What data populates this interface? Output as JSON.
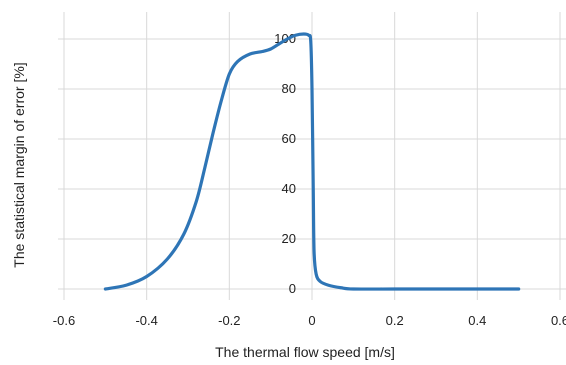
{
  "chart_data": {
    "type": "line",
    "title": "",
    "xlabel": "The thermal flow speed [m/s]",
    "ylabel": "The statistical margin of error [%]",
    "xlim": [
      -0.6,
      0.6
    ],
    "ylim": [
      0,
      100
    ],
    "x_ticks": [
      -0.6,
      -0.4,
      -0.2,
      0,
      0.2,
      0.4,
      0.6
    ],
    "x_tick_labels": [
      "-0.6",
      "-0.4",
      "-0.2",
      "0",
      "0.2",
      "0.4",
      "0.6"
    ],
    "y_ticks": [
      0,
      20,
      40,
      60,
      80,
      100
    ],
    "y_tick_labels": [
      "0",
      "20",
      "40",
      "60",
      "80",
      "100"
    ],
    "grid": true,
    "legend": "none",
    "colors": {
      "line": "#2e75b6",
      "grid": "#d9d9d9"
    },
    "series": [
      {
        "points": [
          [
            -0.5,
            0
          ],
          [
            -0.45,
            1.5
          ],
          [
            -0.4,
            5
          ],
          [
            -0.35,
            12
          ],
          [
            -0.31,
            22
          ],
          [
            -0.28,
            35
          ],
          [
            -0.26,
            48
          ],
          [
            -0.24,
            62
          ],
          [
            -0.22,
            75
          ],
          [
            -0.2,
            86
          ],
          [
            -0.18,
            91
          ],
          [
            -0.15,
            94
          ],
          [
            -0.12,
            95
          ],
          [
            -0.1,
            96
          ],
          [
            -0.08,
            98
          ],
          [
            -0.06,
            100
          ],
          [
            -0.04,
            101.5
          ],
          [
            -0.02,
            102
          ],
          [
            -0.008,
            101.5
          ],
          [
            -0.003,
            99
          ],
          [
            0.0,
            80
          ],
          [
            0.003,
            40
          ],
          [
            0.005,
            15
          ],
          [
            0.01,
            6
          ],
          [
            0.02,
            3
          ],
          [
            0.04,
            1.5
          ],
          [
            0.07,
            0.5
          ],
          [
            0.1,
            0
          ],
          [
            0.2,
            0
          ],
          [
            0.3,
            0
          ],
          [
            0.4,
            0
          ],
          [
            0.5,
            0
          ]
        ]
      }
    ]
  }
}
